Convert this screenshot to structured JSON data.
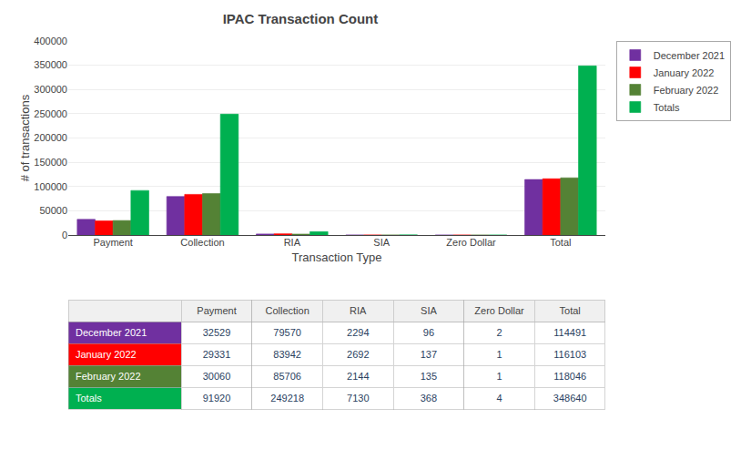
{
  "chart_data": {
    "type": "bar",
    "title": "IPAC Transaction Count",
    "xlabel": "Transaction Type",
    "ylabel": "# of transactions",
    "categories": [
      "Payment",
      "Collection",
      "RIA",
      "SIA",
      "Zero Dollar",
      "Total"
    ],
    "series": [
      {
        "name": "December 2021",
        "color": "#7030A0",
        "values": [
          32529,
          79570,
          2294,
          96,
          2,
          114491
        ]
      },
      {
        "name": "January 2022",
        "color": "#FF0000",
        "values": [
          29331,
          83942,
          2692,
          137,
          1,
          116103
        ]
      },
      {
        "name": "February 2022",
        "color": "#548235",
        "values": [
          30060,
          85706,
          2144,
          135,
          1,
          118046
        ]
      },
      {
        "name": "Totals",
        "color": "#00B050",
        "values": [
          91920,
          249218,
          7130,
          368,
          4,
          348640
        ]
      }
    ],
    "ylim": [
      0,
      400000
    ],
    "yticks": [
      0,
      50000,
      100000,
      150000,
      200000,
      250000,
      300000,
      350000,
      400000
    ],
    "grid": true,
    "legend": "right"
  }
}
